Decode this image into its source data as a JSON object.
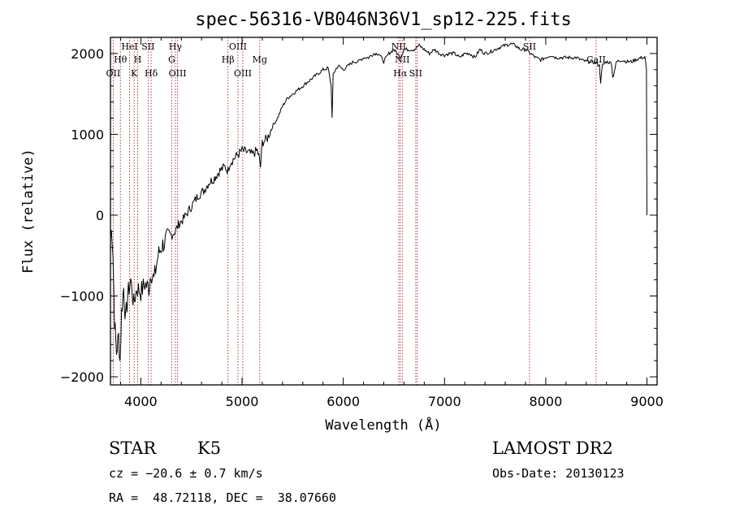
{
  "chart_data": {
    "type": "line",
    "title": "spec-56316-VB046N36V1_sp12-225.fits",
    "xlabel": "Wavelength (Å)",
    "ylabel": "Flux (relative)",
    "xlim": [
      3700,
      9100
    ],
    "ylim": [
      -2100,
      2200
    ],
    "x_ticks": [
      4000,
      5000,
      6000,
      7000,
      8000,
      9000
    ],
    "y_ticks": [
      -2000,
      -1000,
      0,
      1000,
      2000
    ],
    "x_tick_labels": [
      "4000",
      "5000",
      "6000",
      "7000",
      "8000",
      "9000"
    ],
    "y_tick_labels": [
      "−2000",
      "−1000",
      "0",
      "1000",
      "2000"
    ],
    "grid": false,
    "series": [
      {
        "x": [
          3700,
          3710,
          3725,
          3740,
          3760,
          3780,
          3795,
          3810,
          3830,
          3850,
          3870,
          3900,
          3930,
          3960,
          4000,
          4040,
          4080,
          4100,
          4130,
          4170,
          4200,
          4250,
          4300,
          4340,
          4380,
          4420,
          4470,
          4520,
          4570,
          4620,
          4670,
          4720,
          4780,
          4830,
          4862,
          4880,
          4920,
          4960,
          5000,
          5050,
          5100,
          5150,
          5170,
          5183,
          5200,
          5250,
          5300,
          5350,
          5400,
          5450,
          5500,
          5550,
          5600,
          5650,
          5700,
          5750,
          5800,
          5850,
          5880,
          5890,
          5900,
          5950,
          6000,
          6050,
          6100,
          6150,
          6200,
          6250,
          6300,
          6350,
          6400,
          6450,
          6500,
          6563,
          6600,
          6650,
          6700,
          6750,
          6800,
          6850,
          6900,
          6950,
          7000,
          7050,
          7100,
          7150,
          7200,
          7250,
          7300,
          7350,
          7400,
          7450,
          7500,
          7550,
          7600,
          7650,
          7700,
          7750,
          7800,
          7850,
          7900,
          7950,
          8000,
          8050,
          8100,
          8150,
          8200,
          8250,
          8300,
          8350,
          8400,
          8450,
          8500,
          8530,
          8542,
          8560,
          8600,
          8650,
          8662,
          8700,
          8750,
          8800,
          8850,
          8900,
          8950,
          8980,
          8995,
          9000
        ],
        "y": [
          -300,
          -100,
          -500,
          -1300,
          -1700,
          -1500,
          -1800,
          -1200,
          -900,
          -1300,
          -1000,
          -800,
          -1100,
          -900,
          -950,
          -850,
          -900,
          -700,
          -800,
          -500,
          -400,
          -300,
          -250,
          -200,
          -100,
          -50,
          50,
          150,
          250,
          300,
          400,
          450,
          550,
          600,
          550,
          650,
          700,
          750,
          800,
          780,
          750,
          800,
          700,
          600,
          900,
          950,
          1100,
          1200,
          1350,
          1450,
          1500,
          1550,
          1600,
          1650,
          1700,
          1750,
          1800,
          1820,
          1600,
          1200,
          1750,
          1850,
          1800,
          1850,
          1900,
          1900,
          1950,
          1950,
          2000,
          2000,
          1900,
          2000,
          2050,
          1950,
          2050,
          2050,
          2050,
          2100,
          2050,
          2000,
          2050,
          2000,
          1980,
          2000,
          2000,
          1950,
          2000,
          2000,
          1950,
          2050,
          2000,
          2020,
          2050,
          2080,
          2100,
          2120,
          2100,
          2050,
          2050,
          2000,
          1950,
          1920,
          1950,
          1980,
          1950,
          1950,
          1950,
          1950,
          1950,
          1920,
          1900,
          1900,
          1880,
          1850,
          1650,
          1850,
          1900,
          1880,
          1700,
          1900,
          1920,
          1900,
          1900,
          1930,
          1950,
          1950,
          1800,
          0
        ]
      }
    ],
    "lines": [
      {
        "x": 3727,
        "labels": [
          "OII"
        ],
        "row": 3
      },
      {
        "x": 3798,
        "labels": [
          "Hθ"
        ],
        "row": 2
      },
      {
        "x": 3889,
        "labels": [
          "HeI"
        ],
        "row": 1
      },
      {
        "x": 3934,
        "labels": [
          "K"
        ],
        "row": 3
      },
      {
        "x": 3969,
        "labels": [
          "H"
        ],
        "row": 2
      },
      {
        "x": 4072,
        "labels": [
          "SII"
        ],
        "row": 1
      },
      {
        "x": 4102,
        "labels": [
          "Hδ"
        ],
        "row": 3
      },
      {
        "x": 4305,
        "labels": [
          "G"
        ],
        "row": 2
      },
      {
        "x": 4341,
        "labels": [
          "Hγ"
        ],
        "row": 1
      },
      {
        "x": 4363,
        "labels": [
          "OIII"
        ],
        "row": 3
      },
      {
        "x": 4861,
        "labels": [
          "Hβ"
        ],
        "row": 2
      },
      {
        "x": 4959,
        "labels": [
          "OIII"
        ],
        "row": 1
      },
      {
        "x": 5007,
        "labels": [
          "OIII"
        ],
        "row": 3
      },
      {
        "x": 5175,
        "labels": [
          "Mg"
        ],
        "row": 2
      },
      {
        "x": 6548,
        "labels": [
          "NII"
        ],
        "row": 1
      },
      {
        "x": 6563,
        "labels": [
          "Hα"
        ],
        "row": 3
      },
      {
        "x": 6583,
        "labels": [
          "NII"
        ],
        "row": 2
      },
      {
        "x": 6716,
        "labels": [
          "SII"
        ],
        "row": 3
      },
      {
        "x": 6731,
        "labels": [],
        "row": 0
      },
      {
        "x": 7840,
        "labels": [
          "SII"
        ],
        "row": 1
      },
      {
        "x": 8498,
        "labels": [
          "CaII"
        ],
        "row": 2
      }
    ],
    "line_color": "#a01010"
  },
  "info": {
    "classification": "STAR",
    "subclass": "K5",
    "survey": "LAMOST DR2",
    "redshift": "cz = −20.6 ± 0.7 km/s",
    "obs_date": "Obs-Date: 20130123",
    "coords": "RA =  48.72118, DEC =  38.07660"
  }
}
